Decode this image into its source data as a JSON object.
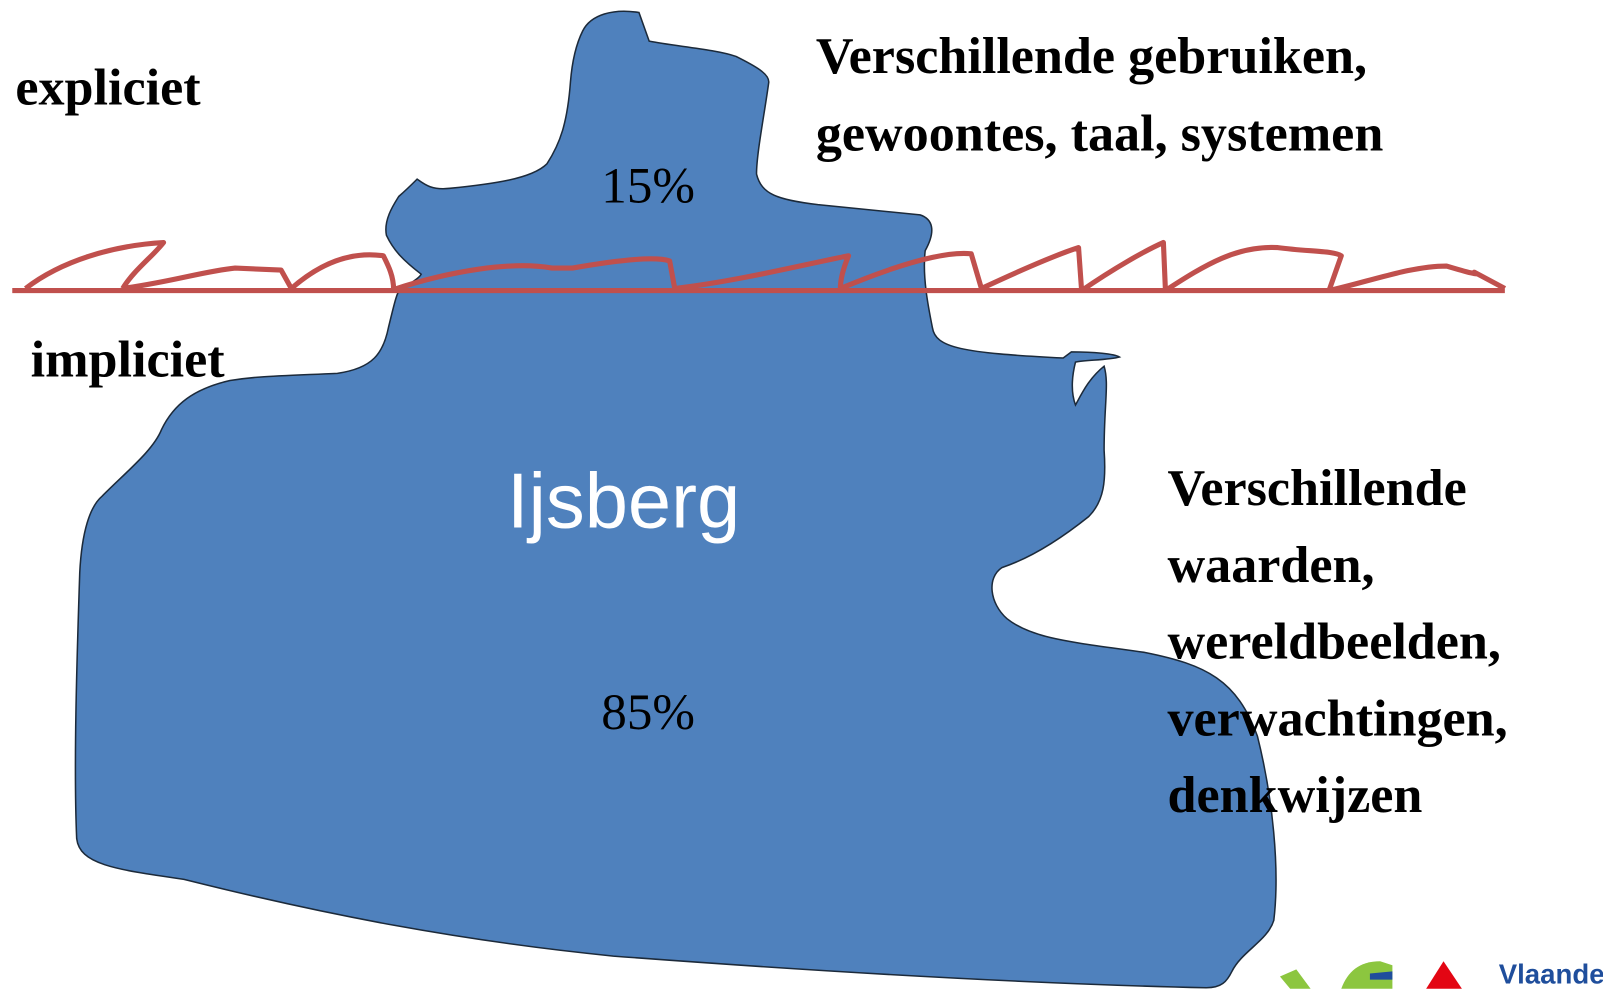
{
  "labels": {
    "explicit": "expliciet",
    "implicit": "impliciet"
  },
  "iceberg": {
    "name": "Ijsberg",
    "top_share": "15%",
    "bottom_share": "85%"
  },
  "top_text": [
    "Verschillende gebruiken,",
    "gewoontes, taal, systemen"
  ],
  "bottom_text": [
    "Verschillende",
    "waarden,",
    "wereldbeelden,",
    "verwachtingen,",
    "denkwijzen"
  ],
  "logo": "Vlaande"
}
